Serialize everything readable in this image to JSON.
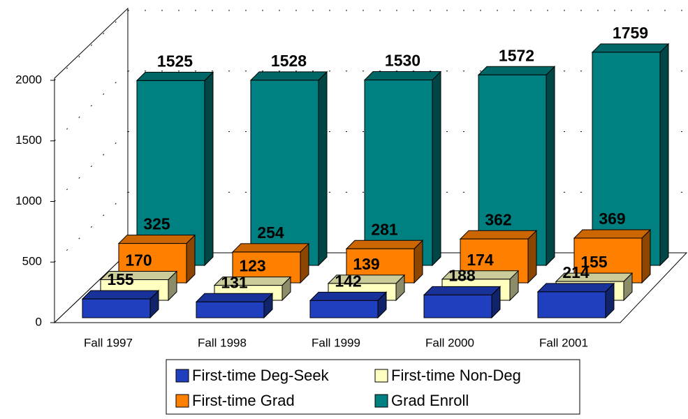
{
  "chart_data": {
    "type": "bar3d",
    "categories": [
      "Fall 1997",
      "Fall 1998",
      "Fall 1999",
      "Fall 2000",
      "Fall 2001"
    ],
    "series": [
      {
        "name": "First-time Deg-Seek",
        "color": "#1f3fbf",
        "values": [
          155,
          131,
          142,
          188,
          214
        ]
      },
      {
        "name": "First-time Non-Deg",
        "color": "#ffffc0",
        "values": [
          170,
          123,
          139,
          174,
          155
        ]
      },
      {
        "name": "First-time Grad",
        "color": "#ff8000",
        "values": [
          325,
          254,
          281,
          362,
          369
        ]
      },
      {
        "name": "Grad Enroll",
        "color": "#008080",
        "values": [
          1525,
          1528,
          1530,
          1572,
          1759
        ]
      }
    ],
    "ylim": [
      0,
      2000
    ],
    "yticks": [
      0,
      500,
      1000,
      1500,
      2000
    ],
    "grid": true
  }
}
